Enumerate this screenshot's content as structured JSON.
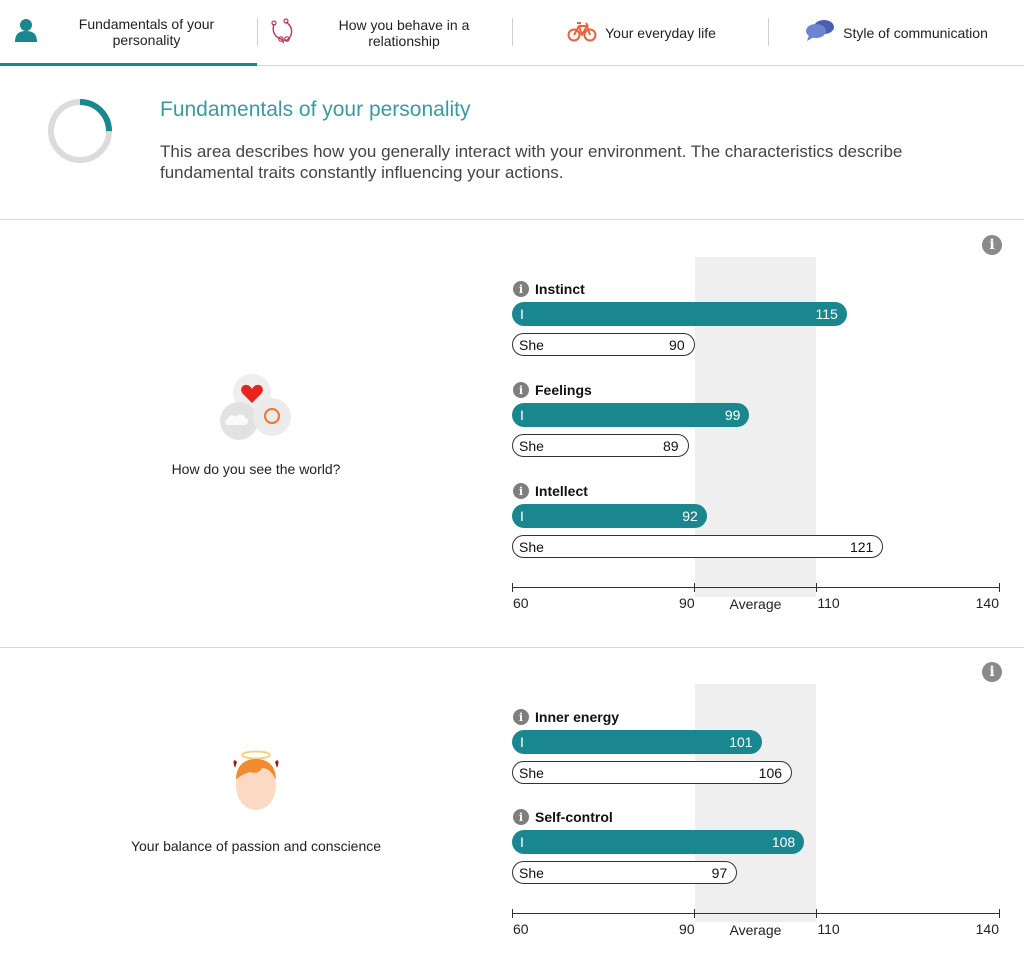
{
  "tabs": [
    {
      "label": "Fundamentals of your personality",
      "icon": "person-icon",
      "active": true
    },
    {
      "label": "How you behave in a relationship",
      "icon": "relationship-icon",
      "active": false
    },
    {
      "label": "Your everyday life",
      "icon": "bicycle-icon",
      "active": false
    },
    {
      "label": "Style of communication",
      "icon": "speech-bubbles-icon",
      "active": false
    }
  ],
  "intro": {
    "title": "Fundamentals of your personality",
    "text": "This area describes how you generally interact with your environment. The characteristics describe fundamental traits constantly influencing your actions.",
    "progress": 0.25
  },
  "colors": {
    "accent": "#1a878f",
    "title": "#3a9aa0",
    "average_band": "#efefef"
  },
  "sections": [
    {
      "caption": "How do you see the world?",
      "icon": "world-view-icon",
      "traits": [
        {
          "name": "Instinct",
          "me_label": "I",
          "me": 115,
          "other_label": "She",
          "other": 90
        },
        {
          "name": "Feelings",
          "me_label": "I",
          "me": 99,
          "other_label": "She",
          "other": 89
        },
        {
          "name": "Intellect",
          "me_label": "I",
          "me": 92,
          "other_label": "She",
          "other": 121
        }
      ],
      "axis": {
        "min_label": "60",
        "avg_low_label": "90",
        "avg_label": "Average",
        "avg_high_label": "110",
        "max_label": "140"
      }
    },
    {
      "caption": "Your balance of passion and conscience",
      "icon": "angel-devil-icon",
      "traits": [
        {
          "name": "Inner energy",
          "me_label": "I",
          "me": 101,
          "other_label": "She",
          "other": 106
        },
        {
          "name": "Self-control",
          "me_label": "I",
          "me": 108,
          "other_label": "She",
          "other": 97
        }
      ],
      "axis": {
        "min_label": "60",
        "avg_low_label": "90",
        "avg_label": "Average",
        "avg_high_label": "110",
        "max_label": "140"
      }
    }
  ]
}
